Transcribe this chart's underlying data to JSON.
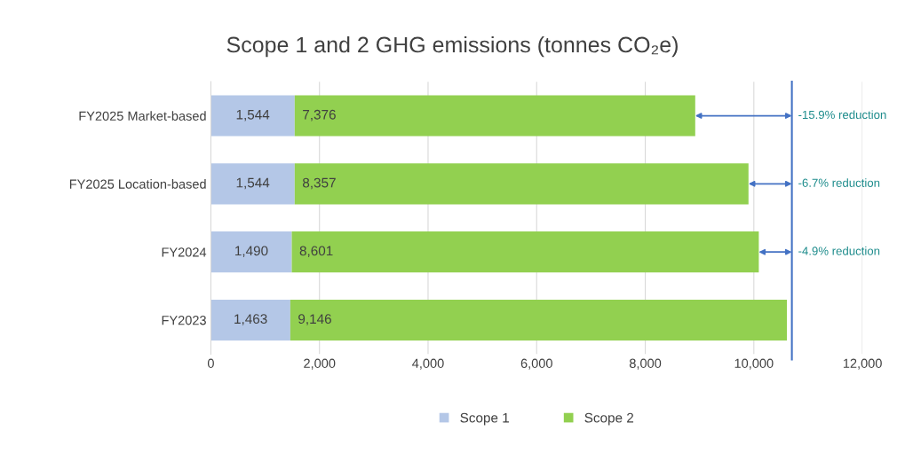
{
  "chart_data": {
    "type": "bar",
    "orientation": "horizontal",
    "stacked": true,
    "title": "Scope 1 and 2 GHG emissions (tonnes CO₂e)",
    "categories": [
      "FY2025 Market-based",
      "FY2025 Location-based",
      "FY2024",
      "FY2023"
    ],
    "series": [
      {
        "name": "Scope 1",
        "color": "#b4c7e7",
        "values": [
          1544,
          1544,
          1490,
          1463
        ],
        "value_labels": [
          "1,544",
          "1,544",
          "1,490",
          "1,463"
        ]
      },
      {
        "name": "Scope 2",
        "color": "#92d050",
        "values": [
          7376,
          8357,
          8601,
          9146
        ],
        "value_labels": [
          "7,376",
          "8,357",
          "8,601",
          "9,146"
        ]
      }
    ],
    "xlim": [
      0,
      12000
    ],
    "xticks": [
      {
        "value": 0,
        "label": "0"
      },
      {
        "value": 2000,
        "label": "2,000"
      },
      {
        "value": 4000,
        "label": "4,000"
      },
      {
        "value": 6000,
        "label": "6,000"
      },
      {
        "value": 8000,
        "label": "8,000"
      },
      {
        "value": 10000,
        "label": "10,000"
      },
      {
        "value": 12000,
        "label": "12,000"
      }
    ],
    "grid": "x",
    "legend": "bottom",
    "ref_lines": [
      {
        "axis": "x",
        "value": 10700,
        "color": "#4472c4"
      }
    ],
    "annotations": [
      {
        "text": "-15.9% reduction",
        "x": 8920,
        "y": "FY2025 Market-based"
      },
      {
        "text": "-6.7% reduction",
        "x": 9901,
        "y": "FY2025 Location-based"
      },
      {
        "text": "-4.9% reduction",
        "x": 10091,
        "y": "FY2024"
      }
    ]
  }
}
